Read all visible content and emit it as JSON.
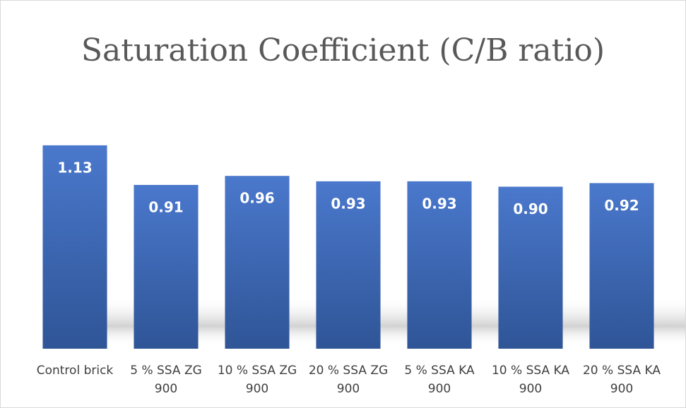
{
  "chart_data": {
    "type": "bar",
    "title": "Saturation Coefficient (C/B ratio)",
    "categories": [
      "Control brick",
      "5 % SSA ZG 900",
      "10 % SSA ZG 900",
      "20 % SSA ZG 900",
      "5 % SSA KA 900",
      "10 % SSA KA 900",
      "20 % SSA KA 900"
    ],
    "values": [
      1.13,
      0.91,
      0.96,
      0.93,
      0.93,
      0.9,
      0.92
    ],
    "value_labels": [
      "1.13",
      "0.91",
      "0.96",
      "0.93",
      "0.93",
      "0.90",
      "0.92"
    ],
    "color": "#4472c4",
    "ylim": [
      0,
      1.4
    ]
  }
}
